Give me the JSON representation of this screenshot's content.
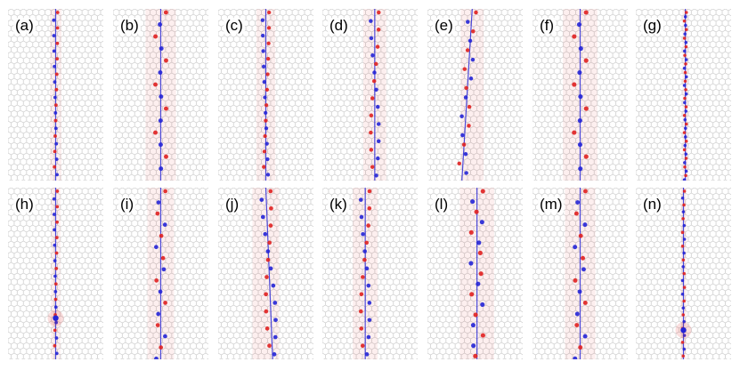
{
  "figure": {
    "panels": [
      {
        "label": "(a)",
        "row": 0,
        "col": 0,
        "line_offset": 0.5,
        "tilt": 0.0,
        "width_spread": 0.06,
        "bead_spacing": 0.09,
        "texture": "hex"
      },
      {
        "label": "(b)",
        "row": 0,
        "col": 1,
        "line_offset": 0.5,
        "tilt": 0.0,
        "width_spread": 0.16,
        "bead_spacing": 0.14,
        "texture": "hex"
      },
      {
        "label": "(c)",
        "row": 0,
        "col": 2,
        "line_offset": 0.5,
        "tilt": 0.0,
        "width_spread": 0.1,
        "bead_spacing": 0.09,
        "texture": "hex"
      },
      {
        "label": "(d)",
        "row": 0,
        "col": 3,
        "line_offset": 0.55,
        "tilt": 0.0,
        "width_spread": 0.12,
        "bead_spacing": 0.1,
        "texture": "hex"
      },
      {
        "label": "(e)",
        "row": 0,
        "col": 4,
        "line_offset": 0.47,
        "tilt": -0.06,
        "width_spread": 0.12,
        "bead_spacing": 0.11,
        "texture": "hex"
      },
      {
        "label": "(f)",
        "row": 0,
        "col": 5,
        "line_offset": 0.5,
        "tilt": 0.0,
        "width_spread": 0.18,
        "bead_spacing": 0.14,
        "texture": "hex"
      },
      {
        "label": "(g)",
        "row": 0,
        "col": 6,
        "line_offset": 0.52,
        "tilt": 0.0,
        "width_spread": 0.03,
        "bead_spacing": 0.05,
        "texture": "hex"
      },
      {
        "label": "(h)",
        "row": 1,
        "col": 0,
        "line_offset": 0.5,
        "tilt": 0.0,
        "width_spread": 0.05,
        "bead_spacing": 0.09,
        "texture": "hex",
        "defect_y": 0.76
      },
      {
        "label": "(i)",
        "row": 1,
        "col": 1,
        "line_offset": 0.5,
        "tilt": 0.0,
        "width_spread": 0.14,
        "bead_spacing": 0.13,
        "texture": "hex"
      },
      {
        "label": "(j)",
        "row": 1,
        "col": 2,
        "line_offset": 0.5,
        "tilt": 0.04,
        "width_spread": 0.14,
        "bead_spacing": 0.1,
        "texture": "hex"
      },
      {
        "label": "(k)",
        "row": 1,
        "col": 3,
        "line_offset": 0.45,
        "tilt": 0.0,
        "width_spread": 0.13,
        "bead_spacing": 0.1,
        "texture": "hex"
      },
      {
        "label": "(l)",
        "row": 1,
        "col": 4,
        "line_offset": 0.52,
        "tilt": 0.0,
        "width_spread": 0.18,
        "bead_spacing": 0.12,
        "texture": "hex"
      },
      {
        "label": "(m)",
        "row": 1,
        "col": 5,
        "line_offset": 0.5,
        "tilt": 0.0,
        "width_spread": 0.16,
        "bead_spacing": 0.13,
        "texture": "hex"
      },
      {
        "label": "(n)",
        "row": 1,
        "col": 6,
        "line_offset": 0.5,
        "tilt": 0.0,
        "width_spread": 0.03,
        "bead_spacing": 0.08,
        "texture": "hex",
        "defect_y": 0.83
      }
    ],
    "colors": {
      "lattice": "#c8c8c8",
      "positive": "#e02020",
      "negative": "#2323d6",
      "label": "#000000",
      "background": "#ffffff"
    }
  }
}
